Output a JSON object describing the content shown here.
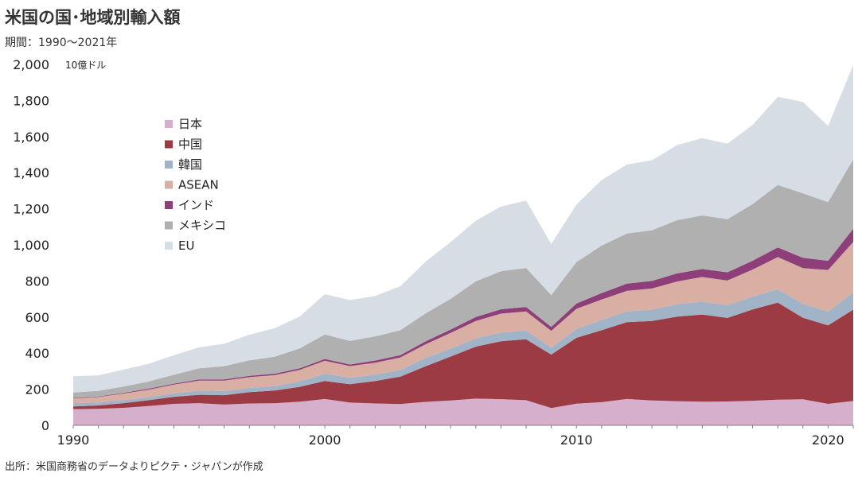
{
  "title": "米国の国･地域別輸入額",
  "subtitle": "期間：1990～2021年",
  "source": "出所：米国商務省のデータよりピクテ・ジャパンが作成",
  "chart_data": {
    "type": "area",
    "stacked": true,
    "unit_label": "10億ドル",
    "x": [
      1990,
      1991,
      1992,
      1993,
      1994,
      1995,
      1996,
      1997,
      1998,
      1999,
      2000,
      2001,
      2002,
      2003,
      2004,
      2005,
      2006,
      2007,
      2008,
      2009,
      2010,
      2011,
      2012,
      2013,
      2014,
      2015,
      2016,
      2017,
      2018,
      2019,
      2020,
      2021
    ],
    "x_ticks": [
      1990,
      2000,
      2010,
      2020
    ],
    "x_tick_labels": [
      "1990",
      "2000",
      "2010",
      "2020"
    ],
    "ylim": [
      0,
      2000
    ],
    "y_ticks": [
      0,
      200,
      400,
      600,
      800,
      1000,
      1200,
      1400,
      1600,
      1800,
      2000
    ],
    "y_tick_labels": [
      "0",
      "200",
      "400",
      "600",
      "800",
      "1,000",
      "1,200",
      "1,400",
      "1,600",
      "1,800",
      "2,000"
    ],
    "grid": false,
    "legend_position": "upper-left",
    "series": [
      {
        "name": "日本",
        "color": "#d5afcc",
        "values": [
          90,
          91,
          97,
          107,
          119,
          123,
          115,
          121,
          122,
          131,
          146,
          126,
          121,
          118,
          130,
          138,
          148,
          145,
          139,
          96,
          120,
          128,
          146,
          138,
          134,
          131,
          132,
          136,
          142,
          144,
          119,
          135
        ]
      },
      {
        "name": "中国",
        "color": "#9d3b44",
        "values": [
          15,
          19,
          26,
          32,
          39,
          46,
          52,
          63,
          71,
          82,
          100,
          102,
          125,
          152,
          197,
          243,
          288,
          321,
          338,
          296,
          365,
          399,
          426,
          440,
          468,
          483,
          463,
          506,
          538,
          452,
          435,
          506
        ]
      },
      {
        "name": "韓国",
        "color": "#a1b3c6",
        "values": [
          18,
          17,
          17,
          17,
          20,
          24,
          23,
          23,
          24,
          31,
          40,
          35,
          35,
          37,
          46,
          44,
          46,
          48,
          48,
          39,
          49,
          57,
          59,
          63,
          70,
          72,
          70,
          71,
          74,
          77,
          76,
          95
        ]
      },
      {
        "name": "ASEAN",
        "color": "#d9aea3",
        "values": [
          26,
          30,
          36,
          42,
          48,
          55,
          58,
          60,
          61,
          63,
          72,
          65,
          66,
          69,
          76,
          87,
          96,
          105,
          106,
          93,
          112,
          113,
          114,
          117,
          125,
          136,
          137,
          150,
          178,
          198,
          231,
          280
        ]
      },
      {
        "name": "インド",
        "color": "#8e3f79",
        "values": [
          3,
          3,
          4,
          5,
          5,
          6,
          6,
          7,
          8,
          9,
          10,
          9,
          12,
          13,
          16,
          19,
          22,
          24,
          25,
          21,
          29,
          36,
          40,
          42,
          45,
          44,
          46,
          49,
          54,
          57,
          51,
          73
        ]
      },
      {
        "name": "メキシコ",
        "color": "#b0b0b0",
        "values": [
          30,
          31,
          35,
          40,
          49,
          62,
          74,
          86,
          94,
          110,
          135,
          131,
          134,
          138,
          155,
          170,
          198,
          211,
          216,
          177,
          230,
          263,
          278,
          281,
          295,
          297,
          294,
          314,
          346,
          358,
          325,
          384
        ]
      },
      {
        "name": "EU",
        "color": "#d7dde5",
        "values": [
          90,
          86,
          94,
          98,
          109,
          116,
          124,
          142,
          158,
          176,
          224,
          226,
          224,
          244,
          286,
          315,
          336,
          358,
          374,
          283,
          319,
          363,
          382,
          388,
          416,
          428,
          419,
          438,
          488,
          506,
          422,
          523
        ]
      }
    ]
  }
}
